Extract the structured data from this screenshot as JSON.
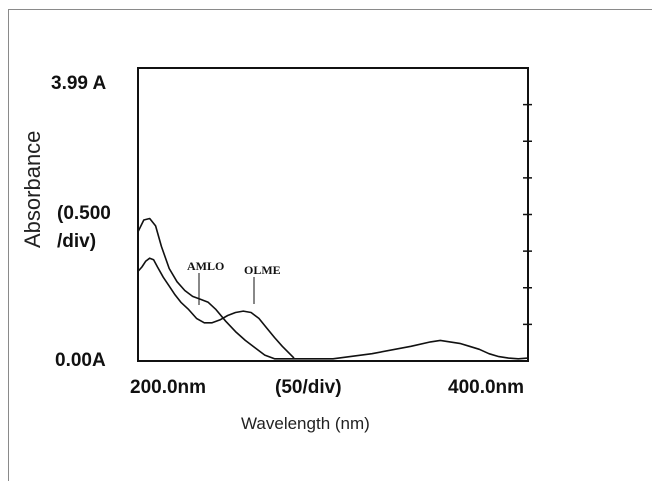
{
  "chart_data": {
    "type": "line",
    "xlabel": "Wavelength (nm)",
    "ylabel": "Absorbance",
    "x_ticks": {
      "left": "200.0nm",
      "middle": "(50/div)",
      "right": "400.0nm"
    },
    "y_ticks": {
      "top": "3.99 A",
      "middle_line1": "(0.500",
      "middle_line2": "/div)",
      "bottom": "0.00A"
    },
    "xlim": [
      200,
      400
    ],
    "ylim": [
      0,
      3.99
    ],
    "grid": false,
    "series": [
      {
        "name": "AMLO",
        "x": [
          200,
          202,
          204,
          206,
          208,
          210,
          213,
          216,
          219,
          222,
          226,
          230,
          234,
          238,
          242,
          246,
          250,
          254,
          258,
          262,
          266,
          270,
          274,
          280
        ],
        "y": [
          1.22,
          1.28,
          1.36,
          1.4,
          1.38,
          1.28,
          1.14,
          1.02,
          0.9,
          0.8,
          0.7,
          0.58,
          0.52,
          0.52,
          0.56,
          0.62,
          0.66,
          0.68,
          0.66,
          0.58,
          0.45,
          0.32,
          0.2,
          0.04
        ]
      },
      {
        "name": "OLME",
        "x": [
          200,
          203,
          206,
          209,
          212,
          216,
          220,
          224,
          228,
          232,
          236,
          240,
          245,
          250,
          255,
          260,
          265,
          270,
          300,
          320,
          340,
          350,
          355,
          360,
          365,
          370,
          375,
          380,
          385,
          390,
          395,
          400
        ],
        "y": [
          1.76,
          1.92,
          1.94,
          1.84,
          1.56,
          1.26,
          1.08,
          0.96,
          0.88,
          0.84,
          0.8,
          0.7,
          0.54,
          0.4,
          0.28,
          0.18,
          0.08,
          0.03,
          0.03,
          0.1,
          0.2,
          0.26,
          0.28,
          0.26,
          0.24,
          0.2,
          0.16,
          0.1,
          0.06,
          0.04,
          0.03,
          0.04
        ]
      }
    ],
    "annotations": [
      "AMLO",
      "OLME"
    ]
  }
}
